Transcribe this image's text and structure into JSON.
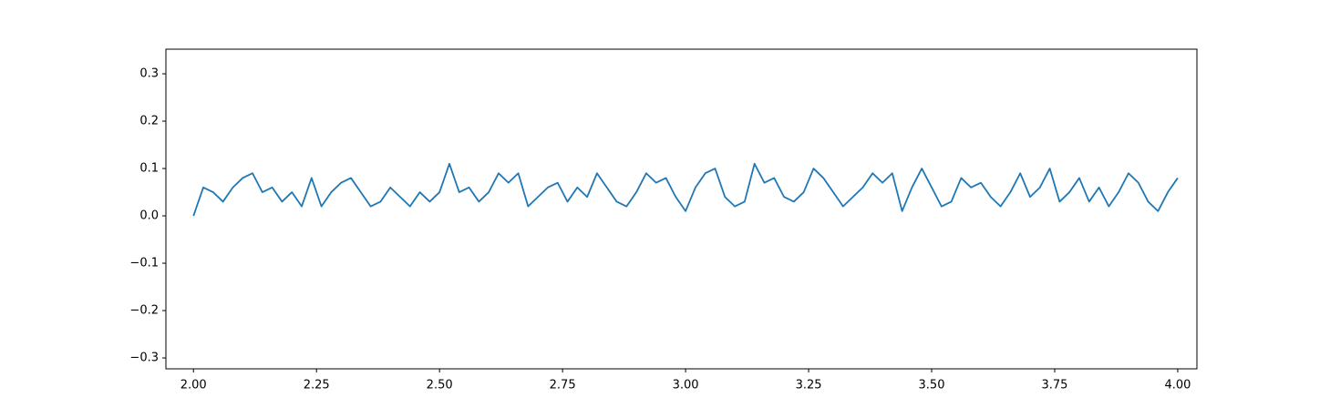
{
  "chart_data": {
    "type": "line",
    "x": [
      2.0,
      2.02,
      2.04,
      2.06,
      2.08,
      2.1,
      2.12,
      2.14,
      2.16,
      2.18,
      2.2,
      2.22,
      2.24,
      2.26,
      2.28,
      2.3,
      2.32,
      2.34,
      2.36,
      2.38,
      2.4,
      2.42,
      2.44,
      2.46,
      2.48,
      2.5,
      2.52,
      2.54,
      2.56,
      2.58,
      2.6,
      2.62,
      2.64,
      2.66,
      2.68,
      2.7,
      2.72,
      2.74,
      2.76,
      2.78,
      2.8,
      2.82,
      2.84,
      2.86,
      2.88,
      2.9,
      2.92,
      2.94,
      2.96,
      2.98,
      3.0,
      3.02,
      3.04,
      3.06,
      3.08,
      3.1,
      3.12,
      3.14,
      3.16,
      3.18,
      3.2,
      3.22,
      3.24,
      3.26,
      3.28,
      3.3,
      3.32,
      3.34,
      3.36,
      3.38,
      3.4,
      3.42,
      3.44,
      3.46,
      3.48,
      3.5,
      3.52,
      3.54,
      3.56,
      3.58,
      3.6,
      3.62,
      3.64,
      3.66,
      3.68,
      3.7,
      3.72,
      3.74,
      3.76,
      3.78,
      3.8,
      3.82,
      3.84,
      3.86,
      3.88,
      3.9,
      3.92,
      3.94,
      3.96,
      3.98,
      4.0
    ],
    "series": [
      {
        "color": "#1f77b4",
        "values": [
          0.0,
          0.06,
          0.05,
          0.03,
          0.06,
          0.08,
          0.09,
          0.05,
          0.06,
          0.03,
          0.05,
          0.02,
          0.08,
          0.02,
          0.05,
          0.07,
          0.08,
          0.05,
          0.02,
          0.03,
          0.06,
          0.04,
          0.02,
          0.05,
          0.03,
          0.05,
          0.11,
          0.05,
          0.06,
          0.03,
          0.05,
          0.09,
          0.07,
          0.09,
          0.02,
          0.04,
          0.06,
          0.07,
          0.03,
          0.06,
          0.04,
          0.09,
          0.06,
          0.03,
          0.02,
          0.05,
          0.09,
          0.07,
          0.08,
          0.04,
          0.01,
          0.06,
          0.09,
          0.1,
          0.04,
          0.02,
          0.03,
          0.11,
          0.07,
          0.08,
          0.04,
          0.03,
          0.05,
          0.1,
          0.08,
          0.05,
          0.02,
          0.04,
          0.06,
          0.09,
          0.07,
          0.09,
          0.01,
          0.06,
          0.1,
          0.06,
          0.02,
          0.03,
          0.08,
          0.06,
          0.07,
          0.04,
          0.02,
          0.05,
          0.09,
          0.04,
          0.06,
          0.1,
          0.03,
          0.05,
          0.08,
          0.03,
          0.06,
          0.02,
          0.05,
          0.09,
          0.07,
          0.03,
          0.01,
          0.05,
          0.08
        ]
      }
    ],
    "xlim": [
      1.944,
      4.039
    ],
    "ylim": [
      -0.323,
      0.352
    ],
    "xticks": [
      {
        "value": 2,
        "label": "2.00"
      },
      2.25,
      {
        "value": 2.5,
        "label": "2.50"
      },
      2.75,
      {
        "value": 3,
        "label": "3.00"
      },
      3.25,
      {
        "value": 3.5,
        "label": "3.50"
      },
      3.75,
      {
        "value": 4,
        "label": "4.00"
      }
    ],
    "yticks": [
      {
        "value": -0.3,
        "label": "−0.3"
      },
      {
        "value": -0.2,
        "label": "−0.2"
      },
      {
        "value": -0.1,
        "label": "−0.1"
      },
      {
        "value": 0,
        "label": "0.0"
      },
      0.1,
      0.2,
      0.3
    ]
  }
}
